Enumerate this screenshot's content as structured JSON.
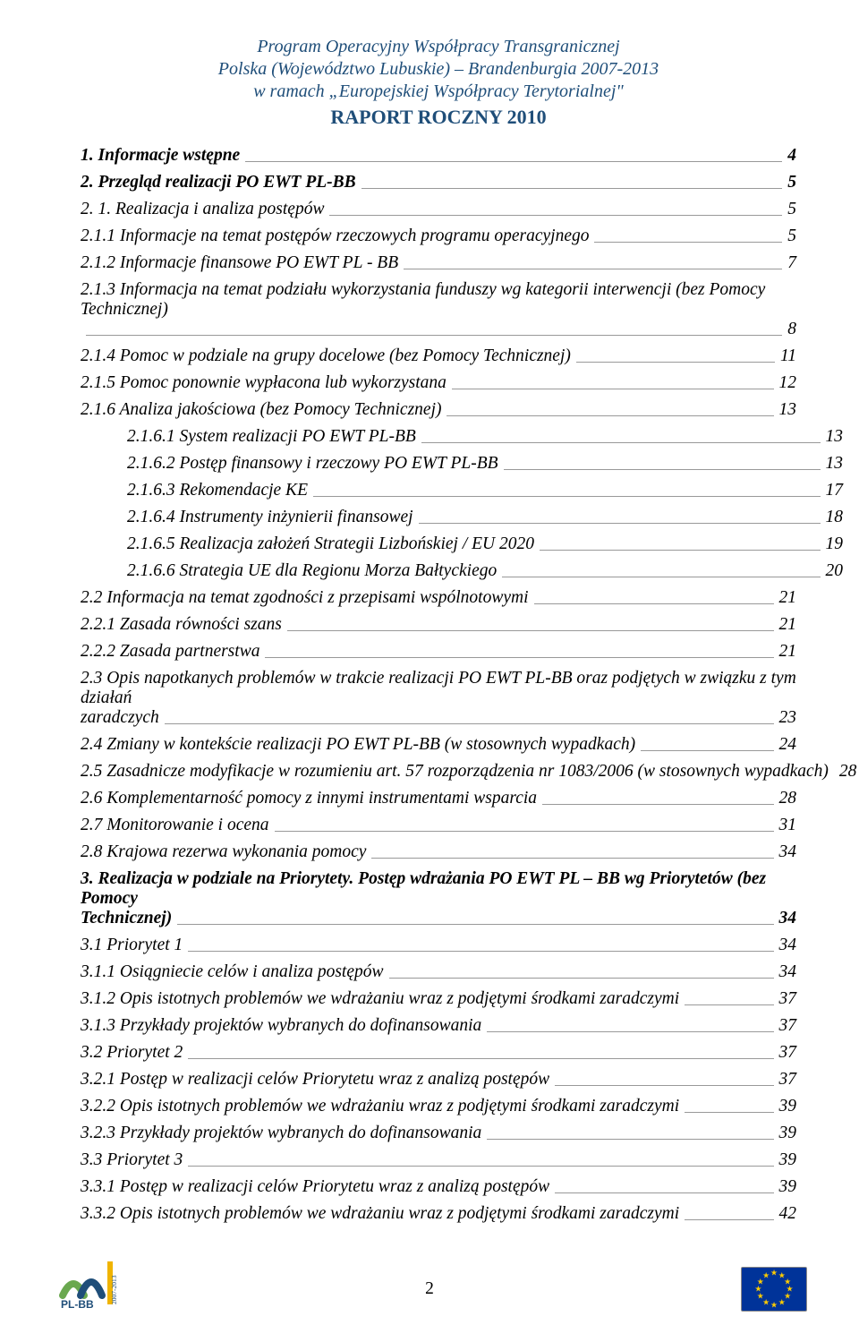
{
  "header": {
    "line1": "Program Operacyjny Współpracy Transgranicznej",
    "line2": "Polska (Województwo Lubuskie) – Brandenburgia 2007-2013",
    "line3": "w ramach „Europejskiej Współpracy Terytorialnej\"",
    "title": "RAPORT ROCZNY 2010"
  },
  "toc": [
    {
      "level": 1,
      "label": "1. Informacje wstępne",
      "page": "4"
    },
    {
      "level": 1,
      "label": "2. Przegląd realizacji PO EWT PL-BB",
      "page": "5"
    },
    {
      "level": 2,
      "label": "2. 1. Realizacja i analiza postępów",
      "page": "5"
    },
    {
      "level": 2,
      "label": "2.1.1 Informacje na temat postępów rzeczowych programu operacyjnego",
      "page": "5"
    },
    {
      "level": 2,
      "label": "2.1.2 Informacje finansowe PO EWT PL - BB",
      "page": "7"
    },
    {
      "level": 2,
      "wrap": true,
      "label_a": "2.1.3 Informacja na temat podziału wykorzystania funduszy wg kategorii interwencji (bez Pomocy Technicznej)",
      "label_b": "",
      "page": "8"
    },
    {
      "level": 2,
      "label": "2.1.4 Pomoc w podziale na grupy docelowe (bez Pomocy Technicznej)",
      "page": "11"
    },
    {
      "level": 2,
      "label": "2.1.5 Pomoc ponownie wypłacona lub wykorzystana",
      "page": "12"
    },
    {
      "level": 2,
      "label": "2.1.6 Analiza jakościowa (bez Pomocy Technicznej)",
      "page": "13"
    },
    {
      "level": 3,
      "label": "2.1.6.1 System realizacji PO EWT PL-BB",
      "page": "13"
    },
    {
      "level": 3,
      "label": "2.1.6.2 Postęp finansowy i rzeczowy PO EWT PL-BB",
      "page": "13"
    },
    {
      "level": 3,
      "label": "2.1.6.3 Rekomendacje KE",
      "page": "17"
    },
    {
      "level": 3,
      "label": "2.1.6.4 Instrumenty inżynierii finansowej",
      "page": "18"
    },
    {
      "level": 3,
      "label": "2.1.6.5 Realizacja założeń Strategii Lizbońskiej / EU 2020",
      "page": "19"
    },
    {
      "level": 3,
      "label": "2.1.6.6 Strategia UE dla Regionu Morza Bałtyckiego",
      "page": "20"
    },
    {
      "level": 2,
      "label": "2.2 Informacja na temat zgodności z przepisami wspólnotowymi",
      "page": "21"
    },
    {
      "level": 2,
      "label": "2.2.1 Zasada równości szans",
      "page": "21"
    },
    {
      "level": 2,
      "label": "2.2.2 Zasada partnerstwa",
      "page": "21"
    },
    {
      "level": 2,
      "wrap": true,
      "label_a": "2.3 Opis napotkanych problemów w trakcie realizacji PO EWT PL-BB oraz podjętych w związku z tym działań",
      "label_b": "zaradczych",
      "page": "23"
    },
    {
      "level": 2,
      "label": "2.4 Zmiany w kontekście realizacji PO EWT PL-BB (w stosownych wypadkach)",
      "page": "24"
    },
    {
      "level": 2,
      "label": "2.5 Zasadnicze modyfikacje w rozumieniu art. 57 rozporządzenia nr 1083/2006  (w stosownych wypadkach)",
      "page": "28",
      "short": true
    },
    {
      "level": 2,
      "label": "2.6 Komplementarność pomocy z innymi instrumentami wsparcia",
      "page": "28"
    },
    {
      "level": 2,
      "label": "2.7 Monitorowanie i ocena",
      "page": "31"
    },
    {
      "level": 2,
      "label": "2.8 Krajowa rezerwa wykonania pomocy",
      "page": "34"
    },
    {
      "level": 1,
      "wrap": true,
      "label_a": "3. Realizacja w podziale na Priorytety. Postęp wdrażania PO EWT PL – BB wg Priorytetów  (bez Pomocy",
      "label_b": "Technicznej)",
      "page": "34"
    },
    {
      "level": 2,
      "label": "3.1 Priorytet 1",
      "page": "34"
    },
    {
      "level": 2,
      "label": "3.1.1 Osiągniecie celów i analiza postępów",
      "page": "34"
    },
    {
      "level": 2,
      "label": "3.1.2 Opis istotnych problemów we wdrażaniu wraz z podjętymi środkami zaradczymi",
      "page": "37"
    },
    {
      "level": 2,
      "label": "3.1.3 Przykłady projektów wybranych do dofinansowania",
      "page": "37"
    },
    {
      "level": 2,
      "label": "3.2 Priorytet 2",
      "page": "37"
    },
    {
      "level": 2,
      "label": "3.2.1 Postęp w realizacji celów Priorytetu wraz z analizą postępów",
      "page": "37"
    },
    {
      "level": 2,
      "label": "3.2.2 Opis istotnych problemów we wdrażaniu wraz z podjętymi środkami zaradczymi",
      "page": "39"
    },
    {
      "level": 2,
      "label": "3.2.3 Przykłady projektów wybranych do dofinansowania",
      "page": "39"
    },
    {
      "level": 2,
      "label": "3.3 Priorytet 3",
      "page": "39"
    },
    {
      "level": 2,
      "label": "3.3.1 Postęp w realizacji celów Priorytetu wraz z analizą postępów",
      "page": "39"
    },
    {
      "level": 2,
      "label": "3.3.2 Opis istotnych problemów we wdrażaniu wraz z podjętymi środkami zaradczymi",
      "page": "42"
    }
  ],
  "page_number": "2",
  "colors": {
    "header_text": "#1f4e79",
    "leader_line": "#999999",
    "eu_bg": "#003399",
    "eu_star": "#ffcc00",
    "logo_green": "#6aa84f",
    "logo_blue": "#1f4e79"
  }
}
